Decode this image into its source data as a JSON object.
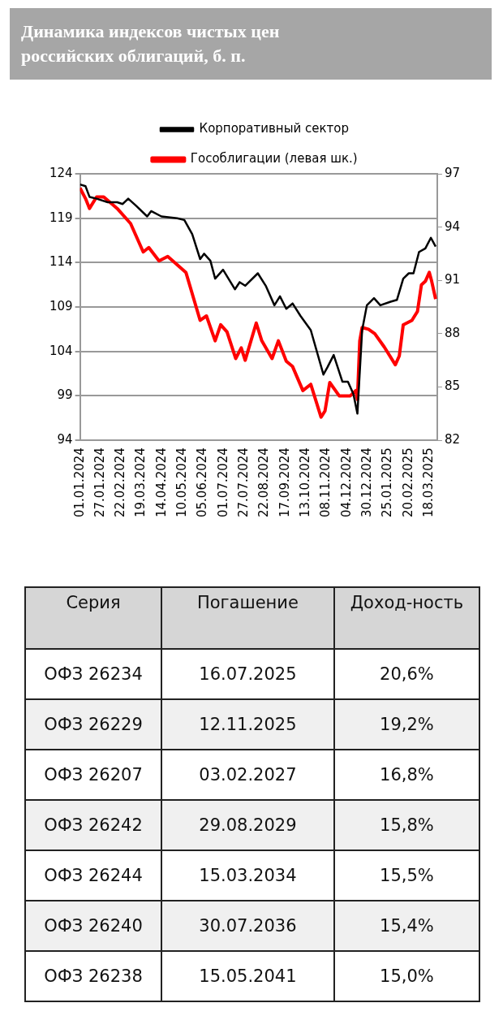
{
  "chart_data": [
    {
      "type": "line",
      "title": "Динамика индексов чистых цен российских облигаций, б. п.",
      "xlim": [
        "2024-01-01",
        "2025-03-28"
      ],
      "xticks": [
        {
          "value": "2024-01-01",
          "label": "01.01.2024"
        },
        {
          "value": "2024-01-27",
          "label": "27.01.2024"
        },
        {
          "value": "2024-02-22",
          "label": "22.02.2024"
        },
        {
          "value": "2024-03-19",
          "label": "19.03.2024"
        },
        {
          "value": "2024-04-14",
          "label": "14.04.2024"
        },
        {
          "value": "2024-05-10",
          "label": "10.05.2024"
        },
        {
          "value": "2024-06-05",
          "label": "05.06.2024"
        },
        {
          "value": "2024-07-01",
          "label": "01.07.2024"
        },
        {
          "value": "2024-07-27",
          "label": "27.07.2024"
        },
        {
          "value": "2024-08-22",
          "label": "22.08.2024"
        },
        {
          "value": "2024-09-17",
          "label": "17.09.2024"
        },
        {
          "value": "2024-10-13",
          "label": "13.10.2024"
        },
        {
          "value": "2024-11-08",
          "label": "08.11.2024"
        },
        {
          "value": "2024-12-04",
          "label": "04.12.2024"
        },
        {
          "value": "2024-12-30",
          "label": "30.12.2024"
        },
        {
          "value": "2025-01-25",
          "label": "25.01.2025"
        },
        {
          "value": "2025-02-20",
          "label": "20.02.2025"
        },
        {
          "value": "2025-03-18",
          "label": "18.03.2025"
        }
      ],
      "ylim": [
        94,
        124
      ],
      "yticks": [
        94,
        99,
        104,
        109,
        114,
        119,
        124
      ],
      "y2lim": [
        82,
        97
      ],
      "y2ticks": [
        82,
        85,
        88,
        91,
        94,
        97
      ],
      "grid": "y",
      "legend": "top",
      "marker": "none",
      "line_style": "solid",
      "series": [
        {
          "name": "Гособлигации (левая шк.)",
          "color": "#ff0000",
          "x": [
            "2024-01-01",
            "2024-01-08",
            "2024-01-13",
            "2024-01-22",
            "2024-01-31",
            "2024-02-17",
            "2024-03-05",
            "2024-03-21",
            "2024-03-28",
            "2024-04-10",
            "2024-04-21",
            "2024-05-14",
            "2024-05-24",
            "2024-06-01",
            "2024-06-09",
            "2024-06-20",
            "2024-06-27",
            "2024-07-05",
            "2024-07-16",
            "2024-07-23",
            "2024-07-28",
            "2024-08-11",
            "2024-08-18",
            "2024-08-31",
            "2024-09-08",
            "2024-09-18",
            "2024-09-26",
            "2024-10-09",
            "2024-10-19",
            "2024-11-01",
            "2024-11-06",
            "2024-11-12",
            "2024-11-24",
            "2024-12-08",
            "2024-12-15",
            "2024-12-17",
            "2024-12-20",
            "2024-12-23",
            "2024-12-31",
            "2025-01-08",
            "2025-01-20",
            "2025-02-03",
            "2025-02-08",
            "2025-02-13",
            "2025-02-24",
            "2025-03-03",
            "2025-03-08",
            "2025-03-13",
            "2025-03-18",
            "2025-03-21",
            "2025-03-26"
          ],
          "values": [
            122.4,
            121.2,
            120.1,
            121.4,
            121.4,
            120.1,
            118.4,
            115.2,
            115.7,
            114.2,
            114.7,
            112.9,
            109.9,
            107.5,
            108.0,
            105.2,
            107.0,
            106.2,
            103.2,
            104.4,
            103.0,
            107.2,
            105.2,
            103.2,
            105.2,
            102.9,
            102.3,
            99.6,
            100.3,
            96.6,
            97.3,
            100.5,
            99.0,
            99.0,
            99.6,
            98.6,
            105.2,
            106.7,
            106.5,
            106.0,
            104.5,
            102.5,
            103.5,
            107.0,
            107.5,
            108.5,
            111.5,
            111.9,
            112.9,
            111.9,
            109.9
          ]
        },
        {
          "name": "Корпоративный сектор",
          "color": "#000000",
          "axis": "y2",
          "x": [
            "2024-01-01",
            "2024-01-08",
            "2024-01-13",
            "2024-01-22",
            "2024-02-05",
            "2024-02-17",
            "2024-02-24",
            "2024-03-02",
            "2024-03-12",
            "2024-03-26",
            "2024-03-31",
            "2024-04-13",
            "2024-05-03",
            "2024-05-12",
            "2024-05-22",
            "2024-06-01",
            "2024-06-06",
            "2024-06-14",
            "2024-06-20",
            "2024-06-30",
            "2024-07-15",
            "2024-07-21",
            "2024-07-28",
            "2024-08-13",
            "2024-08-23",
            "2024-09-03",
            "2024-09-10",
            "2024-09-18",
            "2024-09-26",
            "2024-10-06",
            "2024-10-19",
            "2024-11-04",
            "2024-11-09",
            "2024-11-17",
            "2024-11-28",
            "2024-12-05",
            "2024-12-12",
            "2024-12-17",
            "2024-12-23",
            "2024-12-29",
            "2025-01-07",
            "2025-01-15",
            "2025-01-28",
            "2025-02-05",
            "2025-02-13",
            "2025-02-20",
            "2025-02-26",
            "2025-03-05",
            "2025-03-13",
            "2025-03-20",
            "2025-03-26"
          ],
          "values": [
            96.4,
            96.3,
            95.7,
            95.6,
            95.4,
            95.4,
            95.3,
            95.6,
            95.2,
            94.6,
            94.9,
            94.6,
            94.5,
            94.4,
            93.6,
            92.2,
            92.5,
            92.1,
            91.1,
            91.6,
            90.5,
            90.9,
            90.7,
            91.4,
            90.7,
            89.6,
            90.1,
            89.4,
            89.7,
            89.0,
            88.2,
            85.7,
            86.1,
            86.8,
            85.3,
            85.3,
            84.6,
            83.5,
            88.2,
            89.6,
            90.0,
            89.6,
            89.8,
            89.9,
            91.1,
            91.4,
            91.4,
            92.6,
            92.8,
            93.4,
            92.9
          ]
        }
      ]
    },
    {
      "type": "other",
      "annotations": [
        "Серия",
        "Погашение",
        "Доход-ность"
      ],
      "categories": [
        "ОФЗ 26234",
        "ОФЗ 26229",
        "ОФЗ 26207",
        "ОФЗ 26242",
        "ОФЗ 26244",
        "ОФЗ 26240",
        "ОФЗ 26238"
      ],
      "series": [
        {
          "values": [
            null,
            null,
            null,
            null,
            null,
            null,
            null
          ],
          "value_labels": [
            "16.07.2025",
            "12.11.2025",
            "03.02.2027",
            "29.08.2029",
            "15.03.2034",
            "30.07.2036",
            "15.05.2041"
          ]
        },
        {
          "values": [
            20.6,
            19.2,
            16.8,
            15.8,
            15.5,
            15.4,
            15.0
          ],
          "value_labels": [
            "20,6%",
            "19,2%",
            "16,8%",
            "15,8%",
            "15,5%",
            "15,4%",
            "15,0%"
          ]
        }
      ]
    }
  ]
}
